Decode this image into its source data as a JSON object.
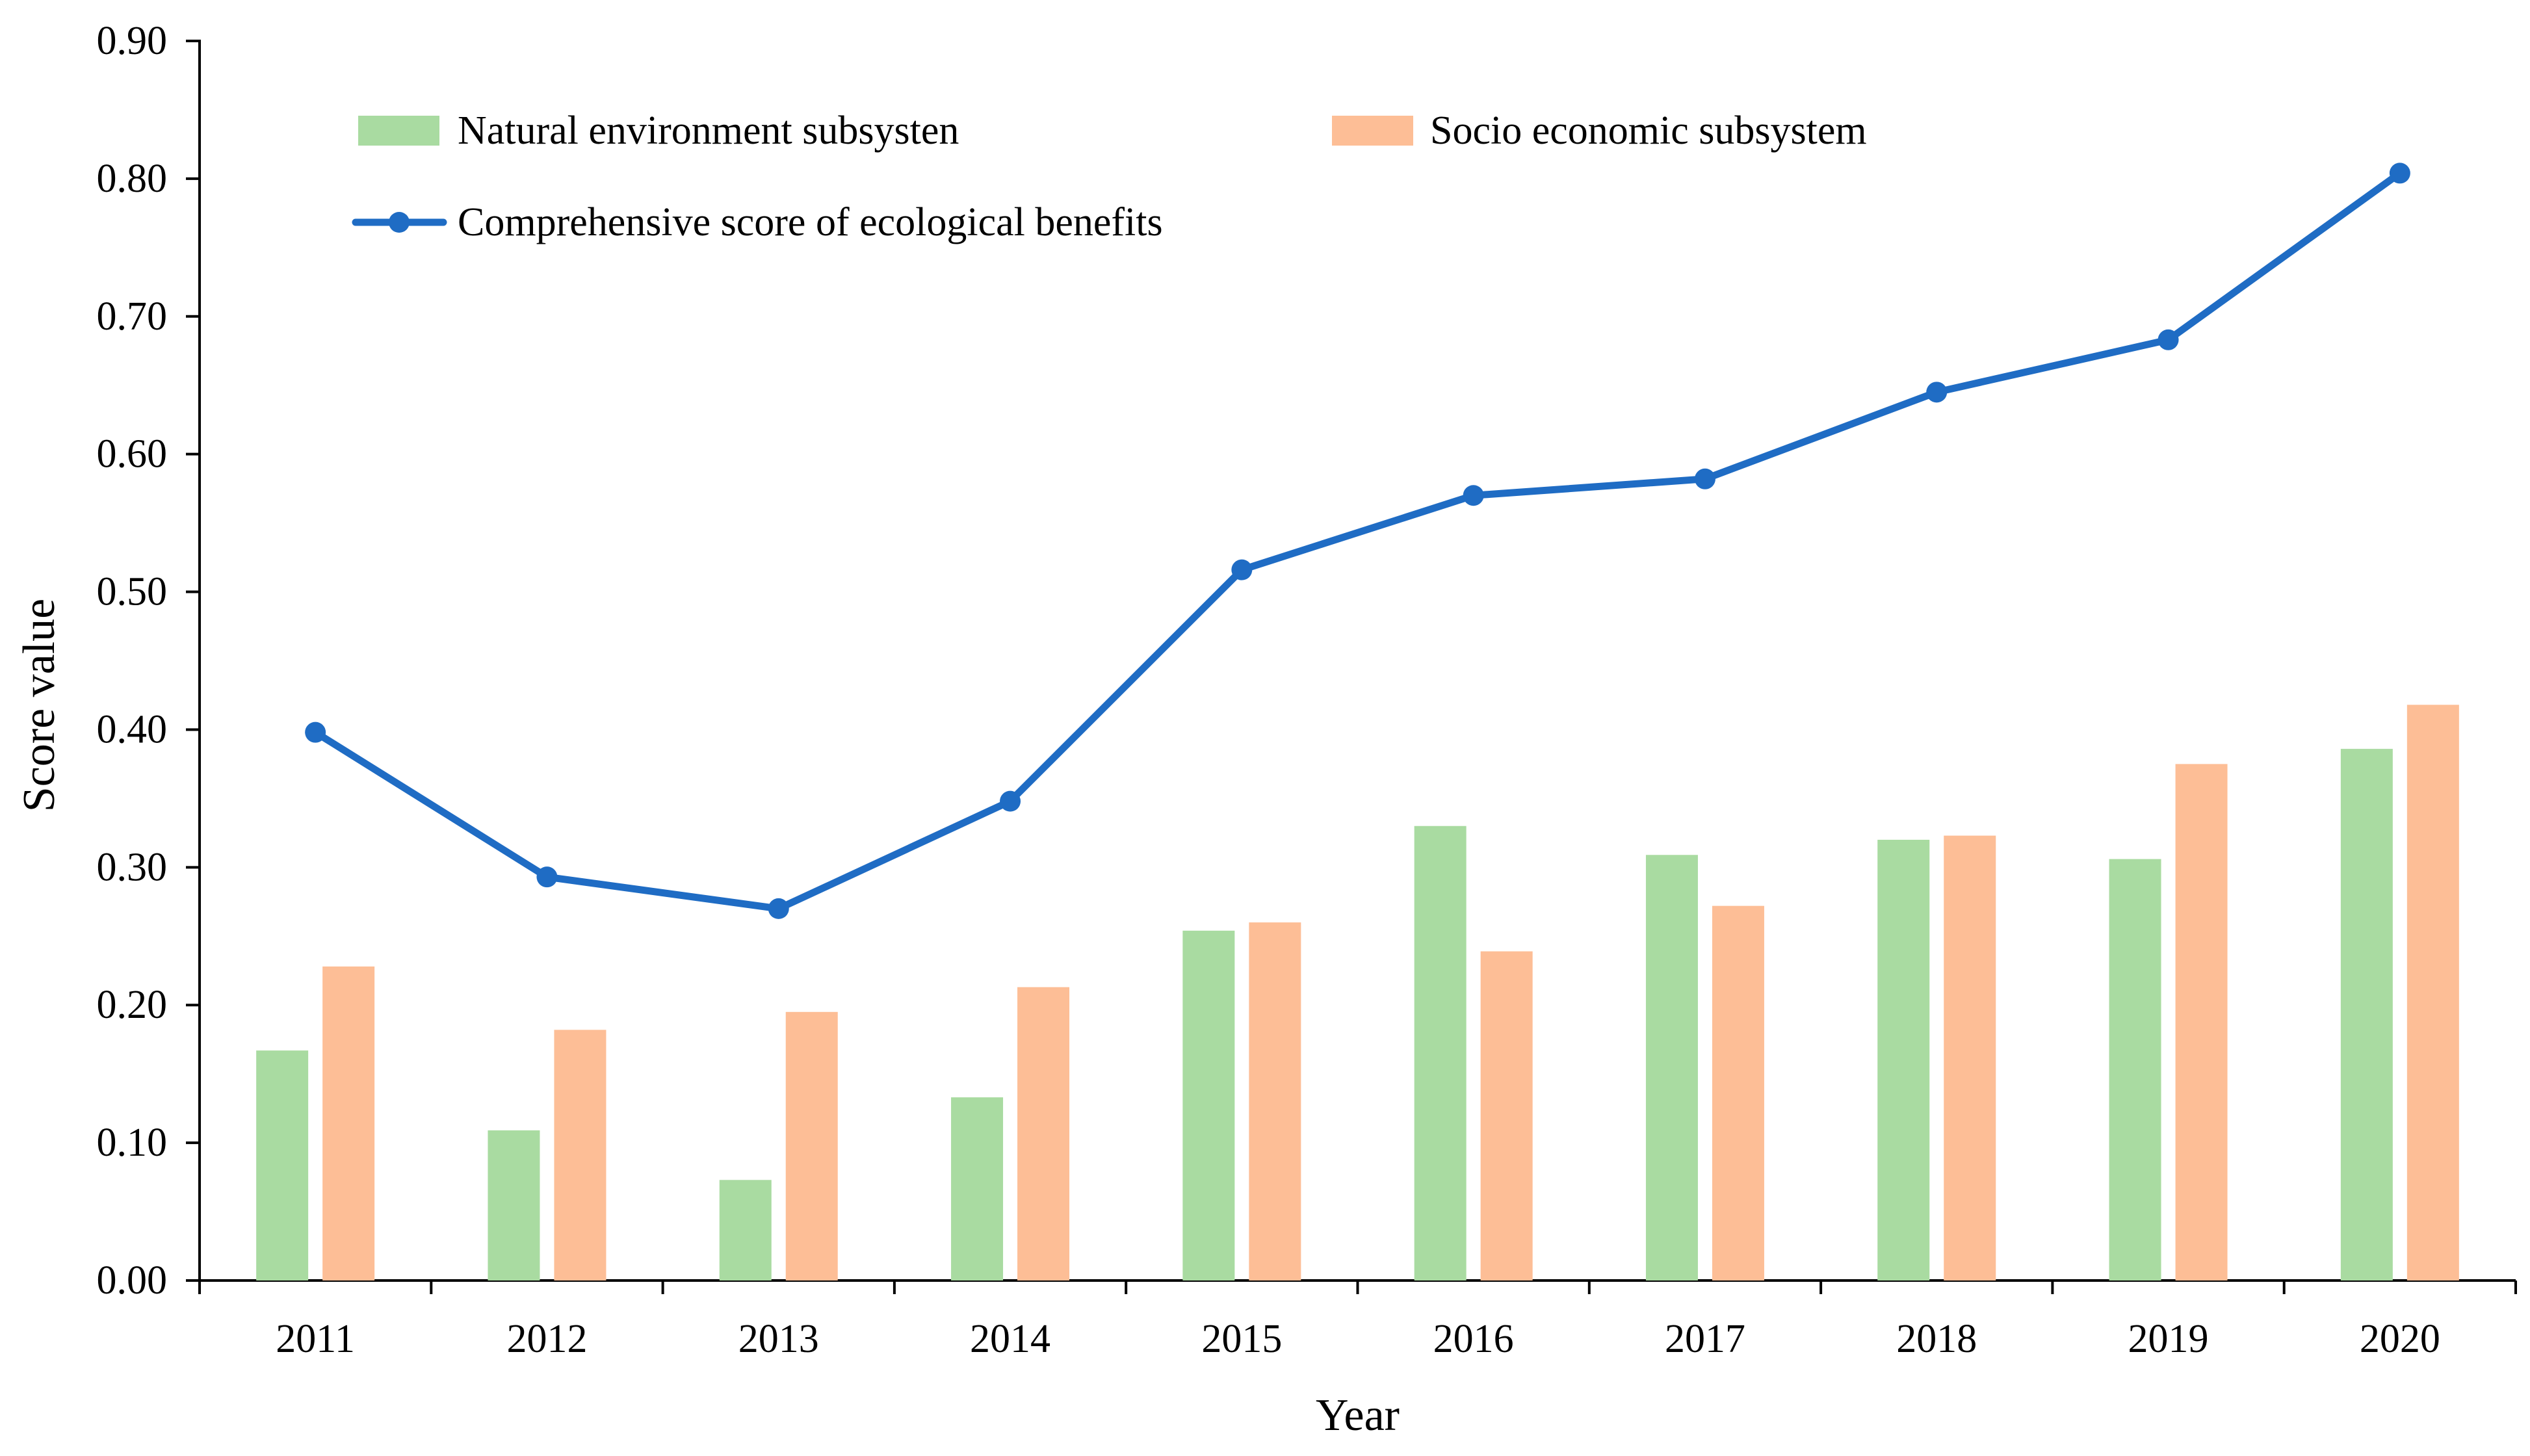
{
  "colors": {
    "natural": "#a9dba1",
    "socio": "#fdbe96",
    "line": "#1f6cc4",
    "axis": "#000000"
  },
  "chart_data": {
    "type": "bar",
    "title": "",
    "xlabel": "Year",
    "ylabel": "Score value",
    "ylim": [
      0,
      0.9
    ],
    "yticks": [
      "0.00",
      "0.10",
      "0.20",
      "0.30",
      "0.40",
      "0.50",
      "0.60",
      "0.70",
      "0.80",
      "0.90"
    ],
    "grid": false,
    "legend_position": "top-left",
    "categories": [
      "2011",
      "2012",
      "2013",
      "2014",
      "2015",
      "2016",
      "2017",
      "2018",
      "2019",
      "2020"
    ],
    "series": [
      {
        "name": "Natural environment subsysten",
        "kind": "bar",
        "values": [
          0.167,
          0.109,
          0.073,
          0.133,
          0.254,
          0.33,
          0.309,
          0.32,
          0.306,
          0.386
        ]
      },
      {
        "name": "Socio economic subsystem",
        "kind": "bar",
        "values": [
          0.228,
          0.182,
          0.195,
          0.213,
          0.26,
          0.239,
          0.272,
          0.323,
          0.375,
          0.418
        ]
      },
      {
        "name": "Comprehensive score of ecological benefits",
        "kind": "line",
        "values": [
          0.398,
          0.293,
          0.27,
          0.348,
          0.516,
          0.57,
          0.582,
          0.645,
          0.683,
          0.804
        ]
      }
    ]
  }
}
